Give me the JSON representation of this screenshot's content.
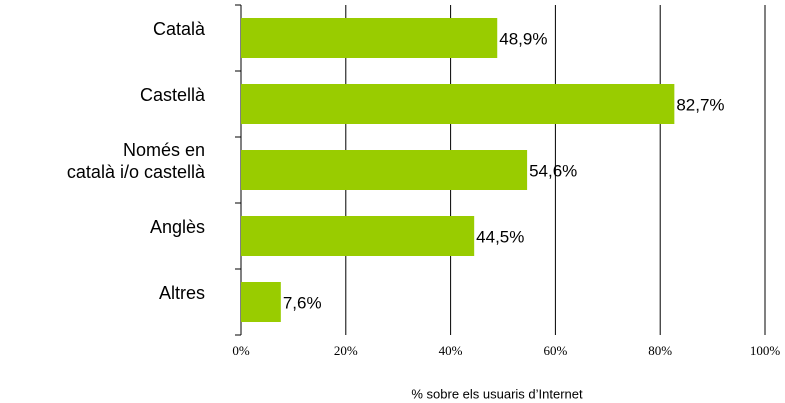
{
  "chart_data": {
    "type": "bar",
    "orientation": "horizontal",
    "categories": [
      "Català",
      "Castellà",
      "Només en\ncatalà i/o castellà",
      "Anglès",
      "Altres"
    ],
    "values": [
      48.9,
      82.7,
      54.6,
      44.5,
      7.6
    ],
    "value_labels": [
      "48,9%",
      "82,7%",
      "54,6%",
      "44,5%",
      "7,6%"
    ],
    "color": "#99cc00",
    "x_label": "% sobre els usuaris d’Internet",
    "xlim": [
      0,
      100
    ],
    "xticks": [
      {
        "value": 0,
        "label": "0%"
      },
      {
        "value": 20,
        "label": "20%"
      },
      {
        "value": 40,
        "label": "40%"
      },
      {
        "value": 60,
        "label": "60%"
      },
      {
        "value": 80,
        "label": "80%"
      },
      {
        "value": 100,
        "label": "100%"
      }
    ],
    "grid": true
  }
}
